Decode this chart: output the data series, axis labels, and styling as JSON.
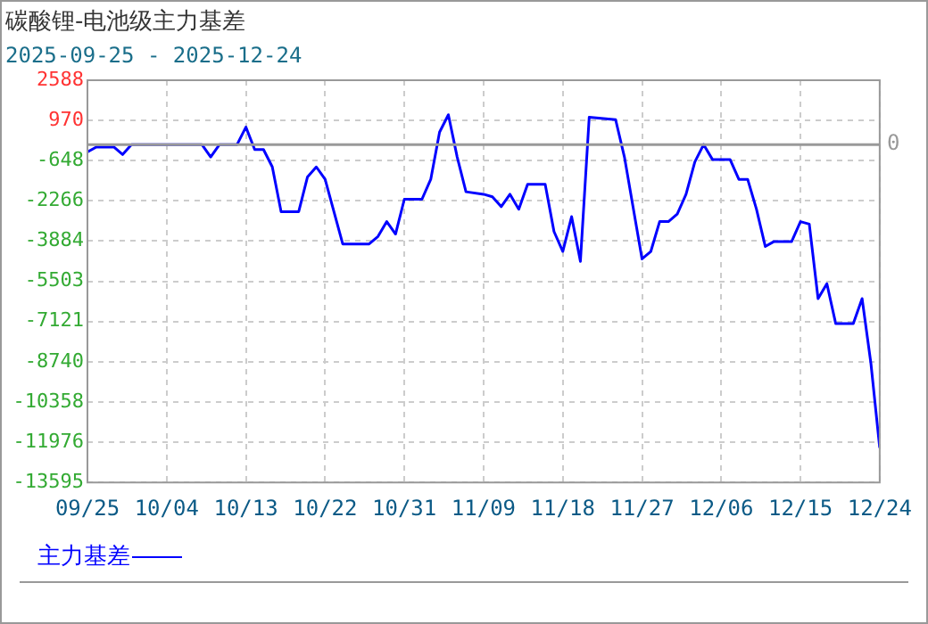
{
  "chart_data": {
    "type": "line",
    "title": "碳酸锂-电池级主力基差",
    "subtitle": "2025-09-25 - 2025-12-24",
    "x": [
      "2025-09-25",
      "2025-09-26",
      "2025-09-28",
      "2025-09-29",
      "2025-09-30",
      "2025-10-08",
      "2025-10-09",
      "2025-10-10",
      "2025-10-12",
      "2025-10-13",
      "2025-10-14",
      "2025-10-15",
      "2025-10-16",
      "2025-10-17",
      "2025-10-19",
      "2025-10-20",
      "2025-10-21",
      "2025-10-22",
      "2025-10-24",
      "2025-10-27",
      "2025-10-28",
      "2025-10-29",
      "2025-10-30",
      "2025-10-31",
      "2025-11-02",
      "2025-11-03",
      "2025-11-04",
      "2025-11-05",
      "2025-11-06",
      "2025-11-07",
      "2025-11-09",
      "2025-11-10",
      "2025-11-11",
      "2025-11-12",
      "2025-11-13",
      "2025-11-14",
      "2025-11-16",
      "2025-11-17",
      "2025-11-18",
      "2025-11-19",
      "2025-11-20",
      "2025-11-21",
      "2025-11-24",
      "2025-11-25",
      "2025-11-27",
      "2025-11-28",
      "2025-11-29",
      "2025-11-30",
      "2025-12-01",
      "2025-12-02",
      "2025-12-03",
      "2025-12-04",
      "2025-12-05",
      "2025-12-07",
      "2025-12-08",
      "2025-12-09",
      "2025-12-10",
      "2025-12-11",
      "2025-12-12",
      "2025-12-14",
      "2025-12-15",
      "2025-12-16",
      "2025-12-17",
      "2025-12-18",
      "2025-12-19",
      "2025-12-21",
      "2025-12-22",
      "2025-12-23",
      "2025-12-24"
    ],
    "series": [
      {
        "name": "主力基差",
        "color": "#0000ff",
        "values": [
          -300,
          -100,
          -100,
          -400,
          0,
          0,
          -500,
          0,
          0,
          700,
          -200,
          -200,
          -900,
          -2700,
          -2700,
          -1300,
          -900,
          -1400,
          -4000,
          -4000,
          -3700,
          -3100,
          -3600,
          -2200,
          -2200,
          -1400,
          500,
          1200,
          -500,
          -1900,
          -2000,
          -2100,
          -2500,
          -2000,
          -2600,
          -1600,
          -1600,
          -3500,
          -4300,
          -2900,
          -4700,
          1100,
          1000,
          -500,
          -4600,
          -4300,
          -3100,
          -3100,
          -2800,
          -2000,
          -700,
          0,
          -600,
          -600,
          -1400,
          -1400,
          -2600,
          -4100,
          -3900,
          -3900,
          -3100,
          -3200,
          -6200,
          -5600,
          -7200,
          -7200,
          -6200,
          -8800,
          -12200
        ]
      }
    ],
    "xlim": [
      "2025-09-25",
      "2025-12-24"
    ],
    "xticks": [
      {
        "value": "2025-09-25",
        "label": "09/25"
      },
      {
        "value": "2025-10-04",
        "label": "10/04"
      },
      {
        "value": "2025-10-13",
        "label": "10/13"
      },
      {
        "value": "2025-10-22",
        "label": "10/22"
      },
      {
        "value": "2025-10-31",
        "label": "10/31"
      },
      {
        "value": "2025-11-09",
        "label": "11/09"
      },
      {
        "value": "2025-11-18",
        "label": "11/18"
      },
      {
        "value": "2025-11-27",
        "label": "11/27"
      },
      {
        "value": "2025-12-06",
        "label": "12/06"
      },
      {
        "value": "2025-12-15",
        "label": "12/15"
      },
      {
        "value": "2025-12-24",
        "label": "12/24"
      }
    ],
    "ylim": [
      -13595,
      2588
    ],
    "yticks": [
      -13595,
      -11976,
      -10358,
      -8740,
      -7121,
      -5503,
      -3884,
      -2266,
      -648,
      970,
      2588
    ],
    "ref_lines": [
      {
        "axis": "y",
        "value": 0,
        "label": "0",
        "color": "#999999"
      }
    ],
    "grid": true,
    "legend": "bottom",
    "marker": "none",
    "line_style": "solid"
  }
}
